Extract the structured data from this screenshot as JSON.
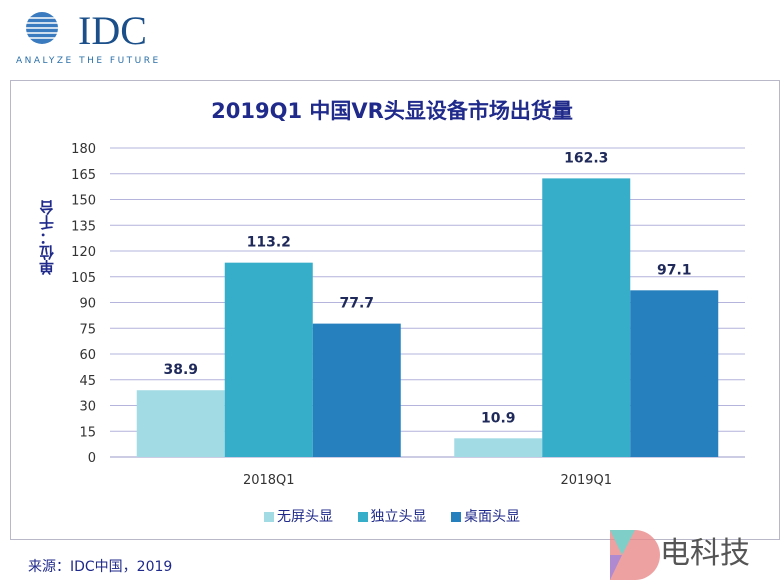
{
  "logo": {
    "text": "IDC",
    "tagline": "ANALYZE THE FUTURE"
  },
  "chart_data": {
    "type": "bar",
    "title": "2019Q1 中国VR头显设备市场出货量",
    "ylabel": "单位：千台",
    "xlabel": "",
    "categories": [
      "2018Q1",
      "2019Q1"
    ],
    "series": [
      {
        "name": "无屏头显",
        "values": [
          38.9,
          10.9
        ],
        "color": "#a3dbe5"
      },
      {
        "name": "独立头显",
        "values": [
          113.2,
          162.3
        ],
        "color": "#36aec9"
      },
      {
        "name": "桌面头显",
        "values": [
          77.7,
          97.1
        ],
        "color": "#2680be"
      }
    ],
    "ylim": [
      0,
      180
    ],
    "yticks": [
      0,
      15,
      30,
      45,
      60,
      75,
      90,
      105,
      120,
      135,
      150,
      165,
      180
    ],
    "grid": true,
    "legend": "bottom"
  },
  "source": "来源：IDC中国，2019",
  "watermark": {
    "text": "电科技"
  }
}
